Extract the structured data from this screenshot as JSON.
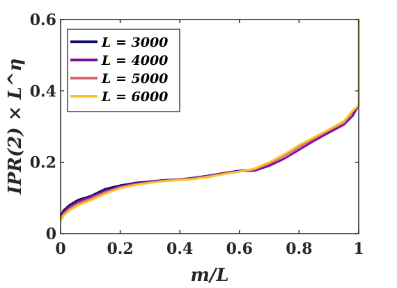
{
  "chart_data": {
    "type": "line",
    "xlabel": "m/L",
    "ylabel": "IPR(2) × L^η",
    "xlim": [
      0,
      1
    ],
    "ylim": [
      0,
      0.6
    ],
    "x_ticks": [
      "0",
      "0.2",
      "0.4",
      "0.6",
      "0.8",
      "1"
    ],
    "y_ticks": [
      "0",
      "0.2",
      "0.4",
      "0.6"
    ],
    "grid": false,
    "legend_position": "top-left",
    "series": [
      {
        "name": "L = 3000",
        "color": "#0d1070",
        "x": [
          0,
          0.01,
          0.03,
          0.06,
          0.1,
          0.15,
          0.2,
          0.25,
          0.3,
          0.35,
          0.4,
          0.45,
          0.5,
          0.55,
          0.6,
          0.65,
          0.7,
          0.75,
          0.8,
          0.85,
          0.9,
          0.95,
          0.98,
          1.0,
          1.0
        ],
        "y": [
          0.05,
          0.065,
          0.08,
          0.095,
          0.105,
          0.125,
          0.135,
          0.142,
          0.146,
          0.15,
          0.152,
          0.157,
          0.163,
          0.17,
          0.176,
          0.18,
          0.195,
          0.22,
          0.245,
          0.268,
          0.29,
          0.315,
          0.34,
          0.36,
          0.6
        ]
      },
      {
        "name": "L = 4000",
        "color": "#7a0f9c",
        "x": [
          0,
          0.01,
          0.03,
          0.06,
          0.1,
          0.15,
          0.2,
          0.25,
          0.3,
          0.35,
          0.4,
          0.45,
          0.5,
          0.55,
          0.6,
          0.65,
          0.7,
          0.75,
          0.8,
          0.85,
          0.9,
          0.95,
          0.98,
          1.0,
          1.0
        ],
        "y": [
          0.045,
          0.06,
          0.075,
          0.09,
          0.102,
          0.12,
          0.132,
          0.14,
          0.145,
          0.149,
          0.152,
          0.156,
          0.162,
          0.169,
          0.175,
          0.176,
          0.19,
          0.21,
          0.235,
          0.26,
          0.283,
          0.305,
          0.33,
          0.36,
          0.6
        ]
      },
      {
        "name": "L = 5000",
        "color": "#d9646e",
        "x": [
          0,
          0.01,
          0.03,
          0.06,
          0.1,
          0.15,
          0.2,
          0.25,
          0.3,
          0.35,
          0.4,
          0.45,
          0.5,
          0.55,
          0.6,
          0.65,
          0.7,
          0.75,
          0.8,
          0.85,
          0.9,
          0.95,
          0.98,
          1.0,
          1.0
        ],
        "y": [
          0.04,
          0.055,
          0.07,
          0.085,
          0.098,
          0.116,
          0.13,
          0.138,
          0.143,
          0.148,
          0.151,
          0.155,
          0.161,
          0.168,
          0.174,
          0.18,
          0.196,
          0.218,
          0.243,
          0.266,
          0.29,
          0.31,
          0.342,
          0.36,
          0.6
        ]
      },
      {
        "name": "L = 6000",
        "color": "#f7c62f",
        "x": [
          0,
          0.01,
          0.03,
          0.06,
          0.1,
          0.15,
          0.2,
          0.25,
          0.3,
          0.35,
          0.4,
          0.45,
          0.5,
          0.55,
          0.6,
          0.65,
          0.7,
          0.75,
          0.8,
          0.85,
          0.9,
          0.95,
          0.98,
          1.0,
          1.0
        ],
        "y": [
          0.035,
          0.05,
          0.065,
          0.08,
          0.093,
          0.112,
          0.127,
          0.136,
          0.142,
          0.147,
          0.15,
          0.153,
          0.159,
          0.167,
          0.174,
          0.182,
          0.2,
          0.222,
          0.248,
          0.27,
          0.292,
          0.315,
          0.345,
          0.36,
          0.6
        ]
      }
    ]
  }
}
